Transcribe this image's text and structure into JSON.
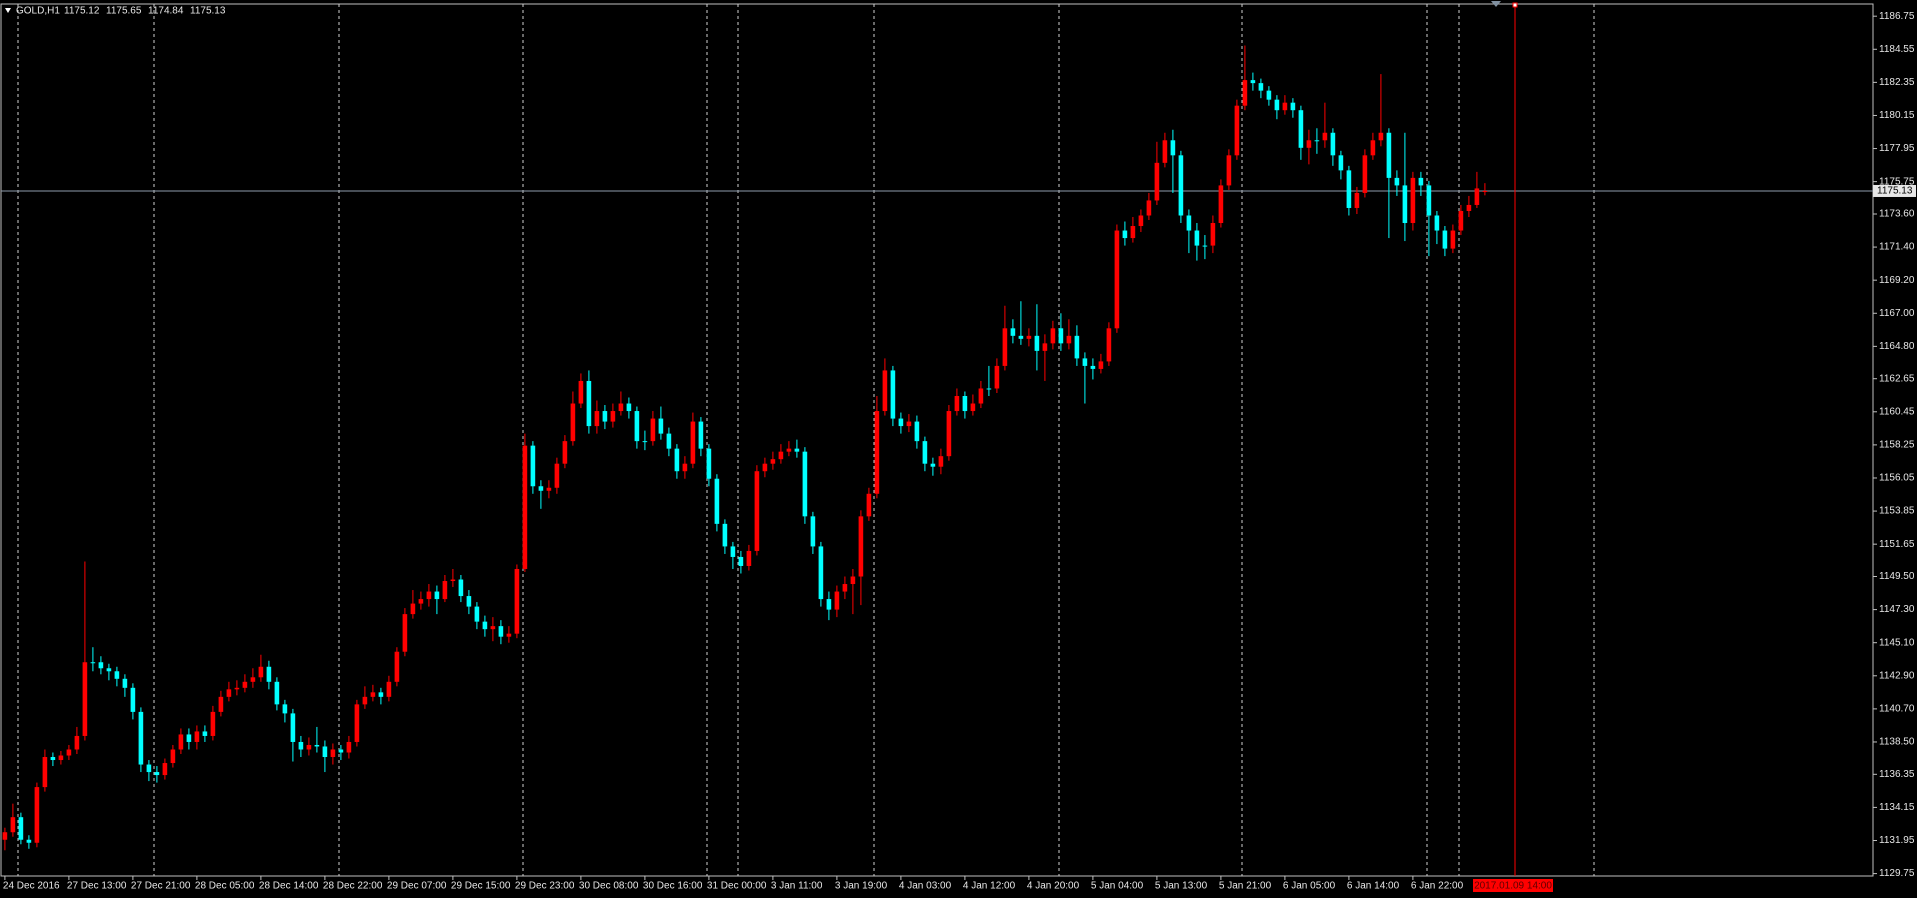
{
  "chart_data": {
    "type": "candlestick",
    "title": "GOLD,H1",
    "cursor_label": "2017.01.09 14:00",
    "up_color": "#ff0000",
    "down_color": "#00ffff",
    "grid": false,
    "ylim": [
      1129.59,
      1187.56
    ],
    "yticks": [
      1186.75,
      1184.55,
      1182.35,
      1180.15,
      1177.95,
      1175.75,
      {
        "value": 1173.6,
        "label": "1173.60"
      },
      {
        "value": 1171.4,
        "label": "1171.40"
      },
      {
        "value": 1169.2,
        "label": "1169.20"
      },
      {
        "value": 1167,
        "label": "1167.00"
      },
      {
        "value": 1164.8,
        "label": "1164.80"
      },
      1162.65,
      1160.45,
      1158.25,
      1156.05,
      1153.85,
      1151.65,
      {
        "value": 1149.5,
        "label": "1149.50"
      },
      {
        "value": 1147.3,
        "label": "1147.30"
      },
      {
        "value": 1145.1,
        "label": "1145.10"
      },
      {
        "value": 1142.9,
        "label": "1142.90"
      },
      {
        "value": 1140.7,
        "label": "1140.70"
      },
      {
        "value": 1138.5,
        "label": "1138.50"
      },
      1136.35,
      1134.15,
      1131.95,
      1129.75
    ],
    "categories": [
      "24 Dec 2016",
      null,
      null,
      null,
      null,
      null,
      null,
      null,
      "27 Dec 13:00",
      null,
      null,
      null,
      null,
      null,
      null,
      null,
      "27 Dec 21:00",
      null,
      null,
      null,
      null,
      null,
      null,
      null,
      "28 Dec 05:00",
      null,
      null,
      null,
      null,
      null,
      null,
      null,
      "28 Dec 14:00",
      null,
      null,
      null,
      null,
      null,
      null,
      null,
      "28 Dec 22:00",
      null,
      null,
      null,
      null,
      null,
      null,
      null,
      "29 Dec 07:00",
      null,
      null,
      null,
      null,
      null,
      null,
      null,
      "29 Dec 15:00",
      null,
      null,
      null,
      null,
      null,
      null,
      null,
      "29 Dec 23:00",
      null,
      null,
      null,
      null,
      null,
      null,
      null,
      "30 Dec 08:00",
      null,
      null,
      null,
      null,
      null,
      null,
      null,
      "30 Dec 16:00",
      null,
      null,
      null,
      null,
      null,
      null,
      null,
      "31 Dec 00:00",
      null,
      null,
      null,
      null,
      null,
      null,
      null,
      "3 Jan 11:00",
      null,
      null,
      null,
      null,
      null,
      null,
      null,
      "3 Jan 19:00",
      null,
      null,
      null,
      null,
      null,
      null,
      null,
      "4 Jan 03:00",
      null,
      null,
      null,
      null,
      null,
      null,
      null,
      "4 Jan 12:00",
      null,
      null,
      null,
      null,
      null,
      null,
      null,
      "4 Jan 20:00",
      null,
      null,
      null,
      null,
      null,
      null,
      null,
      "5 Jan 04:00",
      null,
      null,
      null,
      null,
      null,
      null,
      null,
      "5 Jan 13:00",
      null,
      null,
      null,
      null,
      null,
      null,
      null,
      "5 Jan 21:00",
      null,
      null,
      null,
      null,
      null,
      null,
      null,
      "6 Jan 05:00",
      null,
      null,
      null,
      null,
      null,
      null,
      null,
      "6 Jan 14:00",
      null,
      null,
      null,
      null,
      null,
      null,
      null,
      "6 Jan 22:00",
      null,
      null,
      null,
      null,
      null,
      null,
      null,
      null,
      null
    ],
    "open": [
      1132.0,
      1132.5,
      1133.5,
      1132.0,
      1131.8,
      1135.5,
      1137.5,
      1137.3,
      1137.6,
      1138.0,
      1138.9,
      1143.8,
      1143.8,
      1143.4,
      1143.2,
      1142.7,
      1142.1,
      1140.5,
      1137.0,
      1136.5,
      1136.3,
      1137.1,
      1138.0,
      1139.0,
      1138.5,
      1139.2,
      1138.9,
      1140.5,
      1141.5,
      1142.0,
      1142.1,
      1142.5,
      1142.8,
      1143.5,
      1142.5,
      1141.0,
      1140.4,
      1138.5,
      1138.0,
      1138.3,
      1138.2,
      1137.5,
      1138.0,
      1137.8,
      1138.5,
      1141.0,
      1141.5,
      1141.8,
      1141.5,
      1142.5,
      1144.5,
      1147.0,
      1147.7,
      1148.0,
      1148.5,
      1148.0,
      1149.2,
      1149.3,
      1148.2,
      1147.5,
      1146.5,
      1146.0,
      1146.2,
      1145.5,
      1145.7,
      1150.0,
      1158.2,
      1155.5,
      1155.2,
      1155.4,
      1157.0,
      1158.5,
      1161.0,
      1162.5,
      1159.5,
      1160.5,
      1159.8,
      1160.5,
      1161.0,
      1160.5,
      1158.5,
      1158.5,
      1160.0,
      1159.0,
      1158.0,
      1156.5,
      1157.0,
      1159.8,
      1158.0,
      1156.0,
      1153.0,
      1151.5,
      1150.8,
      1150.2,
      1151.2,
      1156.5,
      1157.0,
      1157.3,
      1157.8,
      1158.0,
      1157.8,
      1153.5,
      1151.5,
      1148.0,
      1147.3,
      1148.5,
      1149.0,
      1149.5,
      1153.5,
      1155.0,
      1160.5,
      1163.2,
      1160.0,
      1159.5,
      1159.8,
      1158.5,
      1157.0,
      1156.8,
      1157.5,
      1160.5,
      1161.5,
      1160.5,
      1161.0,
      1162.0,
      1162.0,
      1163.5,
      1166.0,
      1165.5,
      1165.3,
      1165.5,
      1164.5,
      1165.0,
      1166.0,
      1165.0,
      1165.5,
      1164.0,
      1163.5,
      1163.3,
      1163.8,
      1166.0,
      1172.5,
      1172.0,
      1172.8,
      1173.5,
      1174.5,
      1177.0,
      1178.5,
      1177.5,
      1173.5,
      1172.5,
      1171.5,
      1171.5,
      1173.0,
      1175.5,
      1177.5,
      1180.8,
      1182.5,
      1182.3,
      1181.8,
      1181.2,
      1180.5,
      1181.0,
      1180.5,
      1178.0,
      1178.5,
      1178.5,
      1179.0,
      1177.5,
      1176.5,
      1174.0,
      1175.0,
      1177.5,
      1178.5,
      1179.0,
      1176.0,
      1175.5,
      1173.0,
      1176.0,
      1175.5,
      1173.5,
      1172.5,
      1171.3,
      1172.5,
      1173.8,
      1174.2,
      1175.12
    ],
    "high": [
      1132.8,
      1134.4,
      1133.8,
      1132.3,
      1135.8,
      1138.0,
      1137.8,
      1137.9,
      1138.3,
      1139.5,
      1150.5,
      1144.8,
      1144.2,
      1143.7,
      1143.5,
      1143.0,
      1142.4,
      1140.8,
      1137.3,
      1136.9,
      1137.4,
      1138.3,
      1139.4,
      1139.4,
      1139.6,
      1139.6,
      1140.9,
      1141.9,
      1142.5,
      1142.6,
      1143.0,
      1143.4,
      1144.3,
      1143.9,
      1142.8,
      1141.3,
      1140.7,
      1138.9,
      1138.8,
      1139.5,
      1138.6,
      1138.4,
      1138.3,
      1138.9,
      1141.3,
      1142.2,
      1142.3,
      1142.1,
      1142.9,
      1144.8,
      1147.4,
      1148.6,
      1148.5,
      1149.0,
      1148.9,
      1149.6,
      1150.0,
      1149.6,
      1148.6,
      1147.8,
      1146.9,
      1146.8,
      1146.6,
      1146.2,
      1150.3,
      1159.0,
      1158.5,
      1155.9,
      1155.9,
      1157.4,
      1158.9,
      1161.8,
      1163.0,
      1163.2,
      1161.2,
      1160.9,
      1161.0,
      1161.8,
      1161.4,
      1160.8,
      1159.2,
      1160.5,
      1160.8,
      1159.4,
      1158.3,
      1157.5,
      1160.4,
      1160.1,
      1158.3,
      1156.3,
      1153.3,
      1151.8,
      1151.2,
      1151.6,
      1156.9,
      1157.4,
      1157.8,
      1158.3,
      1158.5,
      1158.6,
      1158.1,
      1153.8,
      1151.8,
      1148.5,
      1148.9,
      1149.5,
      1150.0,
      1153.9,
      1155.4,
      1161.5,
      1164.0,
      1163.5,
      1160.4,
      1160.3,
      1160.2,
      1158.8,
      1157.4,
      1158.0,
      1160.9,
      1162.0,
      1161.8,
      1161.6,
      1162.5,
      1163.5,
      1164.0,
      1167.5,
      1166.6,
      1167.8,
      1166.0,
      1167.6,
      1165.6,
      1166.5,
      1167.0,
      1166.6,
      1166.2,
      1164.4,
      1164.0,
      1164.3,
      1166.4,
      1172.9,
      1173.1,
      1173.4,
      1173.9,
      1175.0,
      1178.4,
      1179.0,
      1179.2,
      1177.8,
      1173.9,
      1173.0,
      1172.2,
      1173.5,
      1175.9,
      1177.9,
      1181.2,
      1184.8,
      1183.0,
      1182.6,
      1182.1,
      1181.5,
      1181.5,
      1181.3,
      1180.8,
      1179.2,
      1179.3,
      1181.0,
      1179.3,
      1177.8,
      1176.8,
      1175.4,
      1177.9,
      1179.0,
      1182.9,
      1179.3,
      1176.5,
      1179.0,
      1176.4,
      1176.4,
      1175.8,
      1173.8,
      1172.8,
      1172.9,
      1174.2,
      1174.8,
      1176.4,
      1175.65
    ],
    "low": [
      1131.3,
      1132.2,
      1131.7,
      1131.4,
      1131.5,
      1135.2,
      1136.9,
      1137.0,
      1137.3,
      1137.7,
      1138.6,
      1143.2,
      1143.0,
      1142.6,
      1142.2,
      1141.5,
      1140.0,
      1136.5,
      1135.9,
      1135.8,
      1136.0,
      1136.8,
      1137.7,
      1138.0,
      1138.0,
      1138.5,
      1138.6,
      1140.2,
      1141.2,
      1141.6,
      1141.8,
      1142.1,
      1142.5,
      1142.0,
      1140.6,
      1139.8,
      1137.2,
      1137.5,
      1137.6,
      1137.8,
      1136.5,
      1137.0,
      1137.3,
      1137.4,
      1138.2,
      1140.7,
      1141.2,
      1141.0,
      1141.2,
      1142.2,
      1144.2,
      1146.7,
      1147.3,
      1147.5,
      1147.0,
      1147.8,
      1148.8,
      1147.8,
      1147.0,
      1146.0,
      1145.5,
      1145.2,
      1145.0,
      1145.1,
      1145.4,
      1149.8,
      1155.0,
      1154.0,
      1154.7,
      1155.0,
      1156.7,
      1158.2,
      1160.7,
      1159.0,
      1159.0,
      1159.3,
      1159.4,
      1160.2,
      1160.0,
      1158.0,
      1157.9,
      1158.2,
      1158.6,
      1157.5,
      1156.0,
      1156.0,
      1156.7,
      1157.5,
      1155.5,
      1152.5,
      1151.0,
      1150.0,
      1149.7,
      1149.9,
      1150.9,
      1156.1,
      1156.6,
      1157.0,
      1157.5,
      1157.4,
      1153.0,
      1151.0,
      1147.5,
      1146.6,
      1146.8,
      1148.0,
      1147.0,
      1147.6,
      1153.2,
      1154.7,
      1160.2,
      1159.5,
      1159.0,
      1159.1,
      1158.0,
      1156.5,
      1156.2,
      1156.3,
      1157.2,
      1160.2,
      1160.0,
      1160.2,
      1160.7,
      1161.5,
      1161.7,
      1163.2,
      1165.0,
      1164.9,
      1164.8,
      1163.2,
      1162.5,
      1164.6,
      1164.5,
      1164.6,
      1163.5,
      1161.0,
      1162.6,
      1163.0,
      1163.5,
      1165.7,
      1171.5,
      1171.7,
      1172.4,
      1173.2,
      1174.2,
      1176.7,
      1175.0,
      1173.0,
      1171.0,
      1170.5,
      1170.6,
      1171.0,
      1172.7,
      1175.2,
      1177.2,
      1180.5,
      1181.8,
      1181.3,
      1180.8,
      1179.9,
      1180.2,
      1180.0,
      1177.2,
      1176.9,
      1177.6,
      1178.0,
      1176.8,
      1175.9,
      1173.5,
      1173.6,
      1174.7,
      1177.2,
      1178.1,
      1172.0,
      1174.8,
      1171.8,
      1172.5,
      1174.8,
      1170.8,
      1171.6,
      1170.8,
      1171.0,
      1172.2,
      1173.4,
      1174.0,
      1174.84
    ],
    "close": [
      1132.5,
      1133.5,
      1132.0,
      1131.8,
      1135.5,
      1137.5,
      1137.3,
      1137.6,
      1138.0,
      1138.9,
      1143.8,
      1143.8,
      1143.4,
      1143.2,
      1142.7,
      1142.1,
      1140.5,
      1137.0,
      1136.5,
      1136.3,
      1137.1,
      1138.0,
      1139.0,
      1138.5,
      1139.2,
      1138.9,
      1140.5,
      1141.5,
      1142.0,
      1142.1,
      1142.5,
      1142.8,
      1143.5,
      1142.5,
      1141.0,
      1140.4,
      1138.5,
      1138.0,
      1138.3,
      1138.2,
      1137.5,
      1138.0,
      1137.8,
      1138.5,
      1141.0,
      1141.5,
      1141.8,
      1141.5,
      1142.5,
      1144.5,
      1147.0,
      1147.7,
      1148.0,
      1148.5,
      1148.0,
      1149.2,
      1149.3,
      1148.2,
      1147.5,
      1146.5,
      1146.0,
      1146.2,
      1145.5,
      1145.7,
      1150.0,
      1158.2,
      1155.5,
      1155.2,
      1155.4,
      1157.0,
      1158.5,
      1161.0,
      1162.5,
      1159.5,
      1160.5,
      1159.8,
      1160.5,
      1161.0,
      1160.5,
      1158.5,
      1158.5,
      1160.0,
      1159.0,
      1158.0,
      1156.5,
      1157.0,
      1159.8,
      1158.0,
      1156.0,
      1153.0,
      1151.5,
      1150.8,
      1150.2,
      1151.2,
      1156.5,
      1157.0,
      1157.3,
      1157.8,
      1158.0,
      1157.8,
      1153.5,
      1151.5,
      1148.0,
      1147.3,
      1148.5,
      1149.0,
      1149.5,
      1153.5,
      1155.0,
      1160.5,
      1163.2,
      1160.0,
      1159.5,
      1159.8,
      1158.5,
      1157.0,
      1156.8,
      1157.5,
      1160.5,
      1161.5,
      1160.5,
      1161.0,
      1162.0,
      1162.0,
      1163.5,
      1166.0,
      1165.5,
      1165.3,
      1165.5,
      1164.5,
      1165.0,
      1166.0,
      1165.0,
      1165.5,
      1164.0,
      1163.5,
      1163.3,
      1163.8,
      1166.0,
      1172.5,
      1172.0,
      1172.8,
      1173.5,
      1174.5,
      1177.0,
      1178.5,
      1177.5,
      1173.5,
      1172.5,
      1171.5,
      1171.5,
      1173.0,
      1175.5,
      1177.5,
      1180.8,
      1182.5,
      1182.3,
      1181.8,
      1181.2,
      1180.5,
      1181.0,
      1180.5,
      1178.0,
      1178.5,
      1178.5,
      1179.0,
      1177.5,
      1176.5,
      1174.0,
      1175.0,
      1177.5,
      1178.5,
      1179.0,
      1176.0,
      1175.5,
      1173.0,
      1176.0,
      1175.5,
      1173.5,
      1172.5,
      1171.3,
      1172.5,
      1173.8,
      1174.2,
      1175.3,
      1175.13
    ]
  }
}
